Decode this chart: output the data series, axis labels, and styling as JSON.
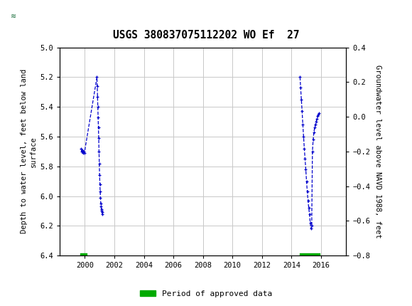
{
  "title": "USGS 380837075112202 WO Ef  27",
  "ylabel_left": "Depth to water level, feet below land\nsurface",
  "ylabel_right": "Groundwater level above NAVD 1988, feet",
  "ylim_left": [
    6.4,
    5.0
  ],
  "ylim_right": [
    -0.8,
    0.4
  ],
  "xlim": [
    1998.3,
    2017.7
  ],
  "xticks": [
    2000,
    2002,
    2004,
    2006,
    2008,
    2010,
    2012,
    2014,
    2016
  ],
  "yticks_left": [
    5.0,
    5.2,
    5.4,
    5.6,
    5.8,
    6.0,
    6.2,
    6.4
  ],
  "yticks_right": [
    0.4,
    0.2,
    0.0,
    -0.2,
    -0.4,
    -0.6,
    -0.8
  ],
  "header_color": "#1a6e3c",
  "line_color": "#0000cc",
  "approved_color": "#00aa00",
  "background_color": "#ffffff",
  "plot_bg_color": "#ffffff",
  "grid_color": "#c8c8c8",
  "series1_x": [
    1999.75,
    1999.78,
    1999.82,
    1999.86,
    1999.9,
    1999.93,
    1999.97,
    2000.82,
    2000.84,
    2000.86,
    2000.88,
    2000.9,
    2000.92,
    2000.94,
    2000.96,
    2000.98,
    2001.0,
    2001.02,
    2001.04,
    2001.06,
    2001.08,
    2001.1,
    2001.12,
    2001.14,
    2001.16,
    2001.18
  ],
  "series1_y": [
    5.68,
    5.7,
    5.69,
    5.71,
    5.7,
    5.7,
    5.71,
    5.2,
    5.26,
    5.33,
    5.4,
    5.47,
    5.54,
    5.61,
    5.7,
    5.78,
    5.86,
    5.92,
    5.97,
    6.01,
    6.05,
    6.07,
    6.09,
    6.1,
    6.11,
    6.12
  ],
  "series2_x": [
    2014.58,
    2014.62,
    2014.67,
    2014.72,
    2014.77,
    2014.82,
    2014.87,
    2014.92,
    2014.97,
    2015.02,
    2015.07,
    2015.12,
    2015.17,
    2015.22,
    2015.27,
    2015.32,
    2015.37,
    2015.42,
    2015.47,
    2015.52,
    2015.57,
    2015.62,
    2015.67,
    2015.72,
    2015.77,
    2015.82,
    2015.87
  ],
  "series2_y": [
    5.2,
    5.27,
    5.35,
    5.43,
    5.52,
    5.6,
    5.68,
    5.75,
    5.82,
    5.9,
    5.97,
    6.03,
    6.08,
    6.12,
    6.18,
    6.22,
    6.2,
    5.7,
    5.62,
    5.57,
    5.54,
    5.52,
    5.5,
    5.48,
    5.46,
    5.45,
    5.44
  ],
  "approved_bars": [
    {
      "x_start": 1999.7,
      "x_end": 2000.1
    },
    {
      "x_start": 2014.55,
      "x_end": 2015.9
    }
  ],
  "legend_label": "Period of approved data"
}
